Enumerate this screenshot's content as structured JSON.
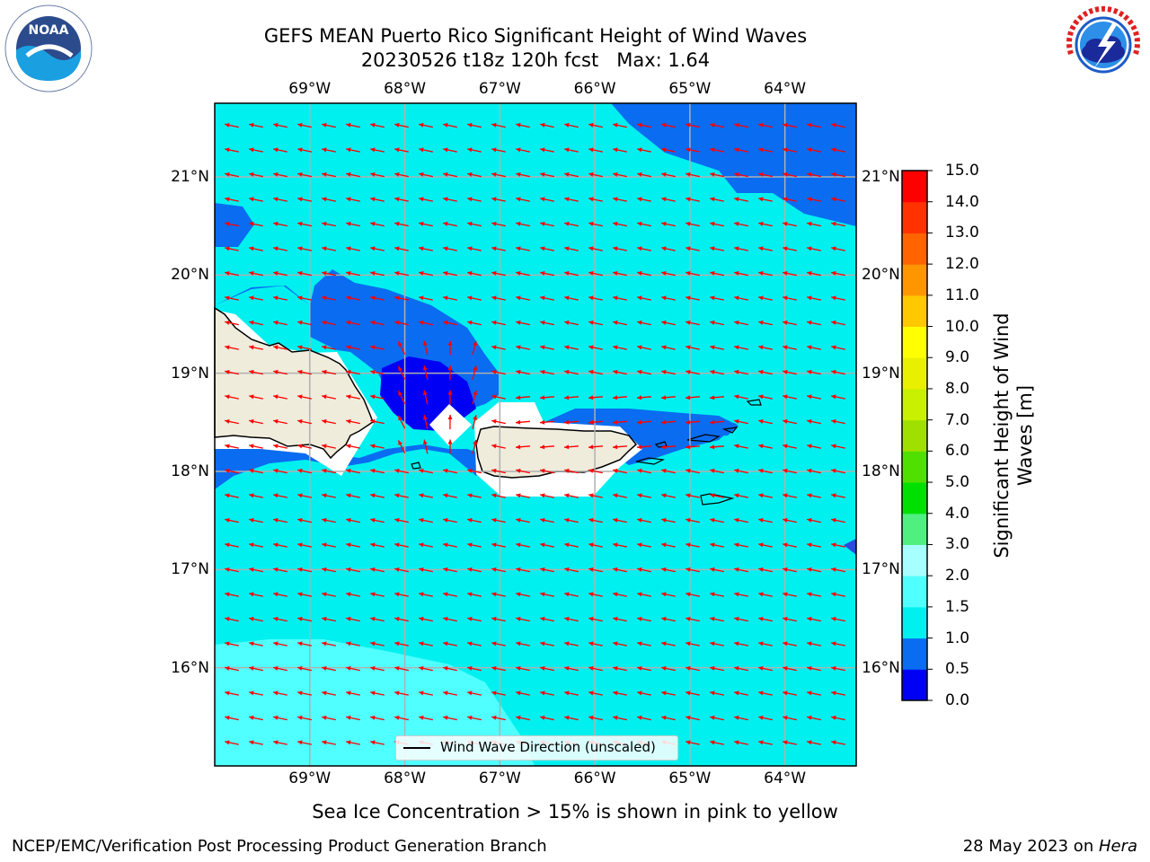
{
  "title": {
    "line1": "GEFS MEAN Puerto Rico Significant Height of Wind Waves",
    "line2": "20230526 t18z 120h fcst   Max: 1.64"
  },
  "lon_labels": [
    "69°W",
    "68°W",
    "67°W",
    "66°W",
    "65°W",
    "64°W"
  ],
  "lat_labels": [
    "21°N",
    "20°N",
    "19°N",
    "18°N",
    "17°N",
    "16°N"
  ],
  "legend": {
    "label": "Wind Wave Direction (unscaled)"
  },
  "colorbar": {
    "label": "Significant Height of Wind Waves [m]",
    "ticks": [
      "0.0",
      "0.5",
      "1.0",
      "1.5",
      "2.0",
      "3.0",
      "4.0",
      "5.0",
      "6.0",
      "7.0",
      "8.0",
      "9.0",
      "10.0",
      "11.0",
      "12.0",
      "13.0",
      "14.0",
      "15.0"
    ],
    "colors": [
      "#0000f5",
      "#0a6cf0",
      "#00f0f0",
      "#50ffff",
      "#a8ffff",
      "#50f080",
      "#00e000",
      "#50e000",
      "#a0e000",
      "#c8f000",
      "#e8f000",
      "#ffff00",
      "#ffc800",
      "#ff9600",
      "#ff6400",
      "#ff3200",
      "#ff0000"
    ]
  },
  "map_colors": {
    "cyan": "#00f0f0",
    "light_cyan": "#50ffff",
    "mid_blue": "#0a6cf0",
    "deep_blue": "#0000f5",
    "land": "#efecdc",
    "arrow": "#ff0000",
    "grid": "#b0b0b0"
  },
  "map_data": {
    "lon_range": [
      -70,
      -63.25
    ],
    "lat_range": [
      15,
      21.75
    ],
    "max_wave_height_m": 1.64,
    "wave_direction": "toward west-northwest"
  },
  "subcaption": "Sea Ice Concentration > 15% is shown in pink to yellow",
  "footer": {
    "left": "NCEP/EMC/Verification Post Processing Product Generation Branch",
    "right_prefix": "28 May 2023 on ",
    "right_machine": "Hera"
  },
  "logos": {
    "noaa": "NOAA",
    "nws": "NATIONAL WEATHER SERVICE"
  }
}
